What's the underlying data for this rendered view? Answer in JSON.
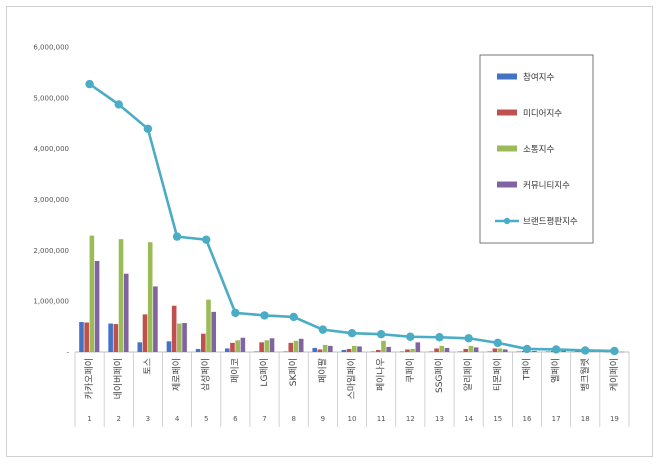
{
  "chart_data": {
    "type": "bar",
    "title": "",
    "xlabel": "",
    "ylabel": "",
    "ylim": [
      0,
      6000000
    ],
    "yticks": [
      "-",
      "1,000,000",
      "2,000,000",
      "3,000,000",
      "4,000,000",
      "5,000,000",
      "6,000,000"
    ],
    "grid": false,
    "legend_position": "top-right",
    "index_labels": [
      "1",
      "2",
      "3",
      "4",
      "5",
      "6",
      "7",
      "8",
      "9",
      "10",
      "11",
      "12",
      "13",
      "14",
      "15",
      "16",
      "17",
      "18",
      "19"
    ],
    "categories": [
      "카카오페이",
      "네이버페이",
      "토스",
      "제로페이",
      "삼성페이",
      "페이코",
      "LG페이",
      "SK페이",
      "페이팔",
      "스마일페이",
      "페이나우",
      "쿠페이",
      "SSG페이",
      "알리페이",
      "티몬페이",
      "T페이",
      "엘페이",
      "뱅크월렛",
      "케이페이"
    ],
    "series": [
      {
        "name": "참여지수",
        "kind": "bar",
        "color": "#4472C4",
        "values": [
          590000,
          560000,
          190000,
          210000,
          60000,
          70000,
          10000,
          10000,
          80000,
          40000,
          10000,
          10000,
          10000,
          10000,
          10000,
          10000,
          10000,
          10000,
          5000
        ]
      },
      {
        "name": "미디어지수",
        "kind": "bar",
        "color": "#C0504D",
        "values": [
          580000,
          550000,
          740000,
          910000,
          360000,
          180000,
          190000,
          180000,
          50000,
          60000,
          40000,
          50000,
          70000,
          60000,
          70000,
          20000,
          20000,
          10000,
          5000
        ]
      },
      {
        "name": "소통지수",
        "kind": "bar",
        "color": "#9BBB59",
        "values": [
          2290000,
          2220000,
          2160000,
          560000,
          1030000,
          230000,
          230000,
          220000,
          140000,
          120000,
          220000,
          60000,
          120000,
          120000,
          70000,
          20000,
          20000,
          10000,
          5000
        ]
      },
      {
        "name": "커뮤니티지수",
        "kind": "bar",
        "color": "#8064A2",
        "values": [
          1790000,
          1540000,
          1290000,
          570000,
          790000,
          280000,
          270000,
          260000,
          120000,
          110000,
          100000,
          190000,
          80000,
          90000,
          50000,
          20000,
          20000,
          10000,
          5000
        ]
      },
      {
        "name": "브랜드평판지수",
        "kind": "line",
        "color": "#4BACC6",
        "values": [
          5270000,
          4870000,
          4390000,
          2270000,
          2210000,
          770000,
          720000,
          690000,
          440000,
          370000,
          350000,
          300000,
          290000,
          270000,
          180000,
          60000,
          50000,
          30000,
          20000
        ]
      }
    ]
  }
}
